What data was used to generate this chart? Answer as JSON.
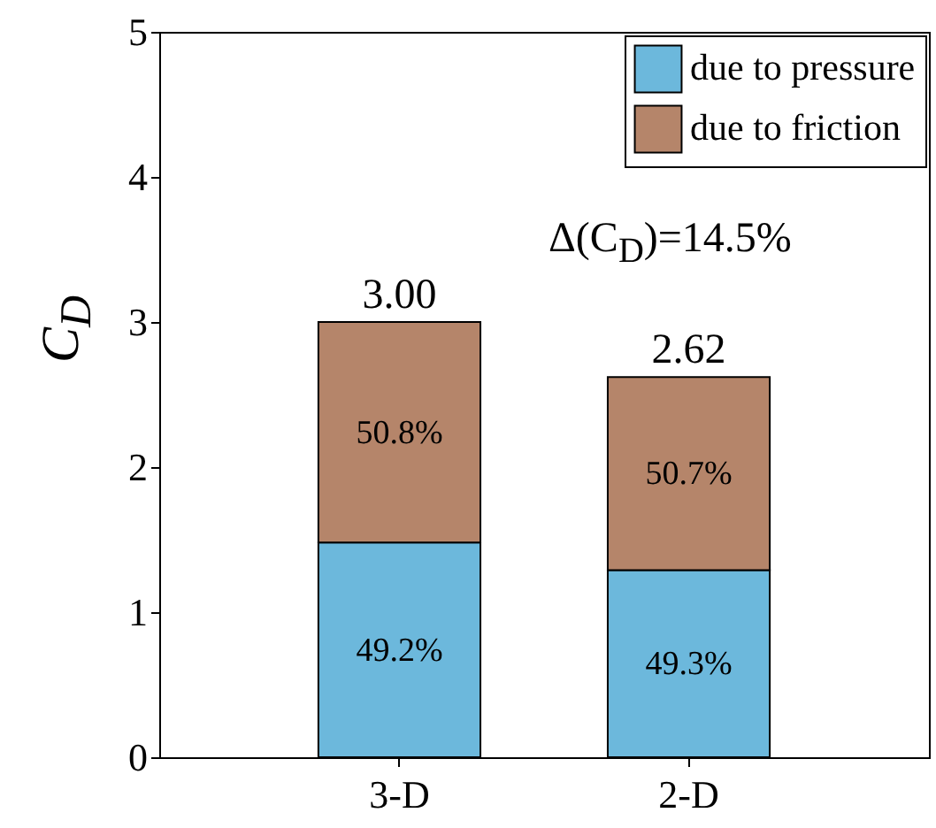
{
  "chart_data": {
    "type": "bar",
    "categories": [
      "3-D",
      "2-D"
    ],
    "stacked": true,
    "ylabel": "C$_{D}$",
    "ylim": [
      0,
      5
    ],
    "yticks": [
      {
        "value": 0,
        "label": "0"
      },
      {
        "value": 1,
        "label": "1"
      },
      {
        "value": 2,
        "label": "2"
      },
      {
        "value": 3,
        "label": "3"
      },
      {
        "value": 4,
        "label": "4"
      },
      {
        "value": 5,
        "label": "5"
      }
    ],
    "legend": "top right",
    "series": [
      {
        "name": "due to pressure",
        "color": "#6cb8dc",
        "values": [
          1.48,
          1.29
        ]
      },
      {
        "name": "due to friction",
        "color": "#b5856a",
        "values": [
          1.52,
          1.33
        ]
      }
    ],
    "totals": [
      "3.00",
      "2.62"
    ],
    "annotations": [
      "49.2%",
      "49.3%",
      "50.8%",
      "50.7%",
      "Δ(C$_{D}$)=14.5%"
    ]
  }
}
